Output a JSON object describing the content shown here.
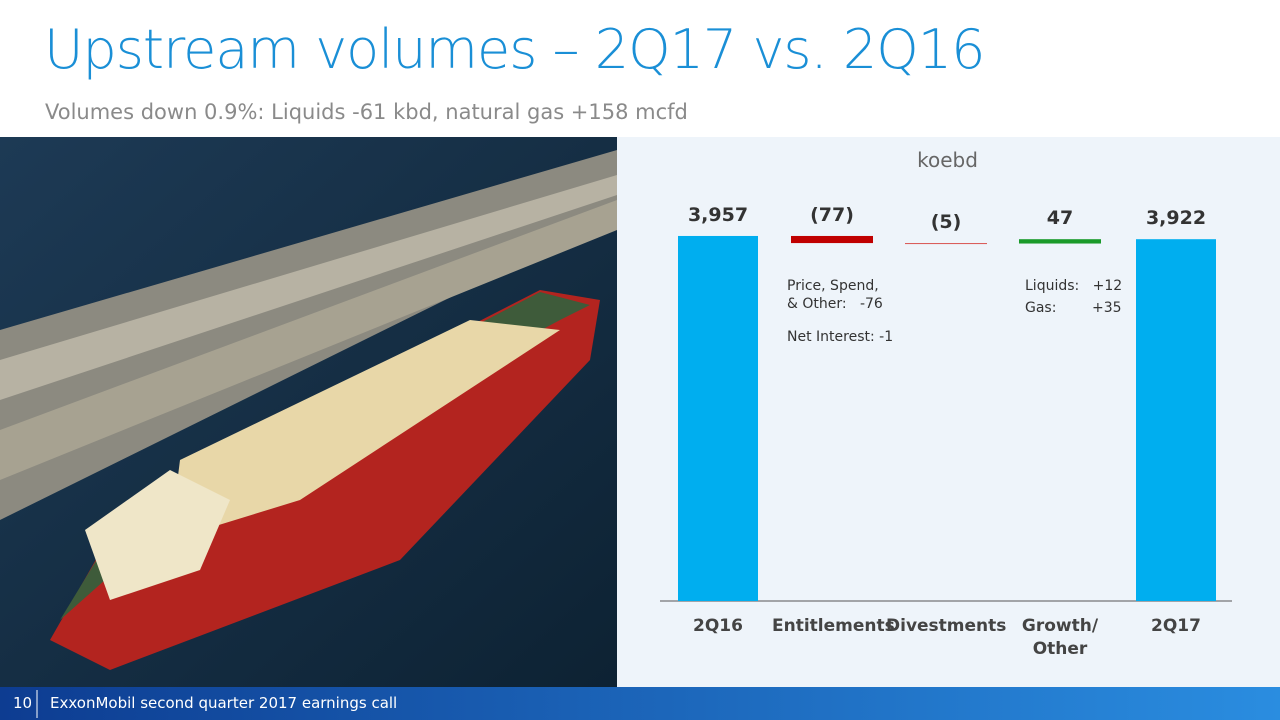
{
  "chart_data": {
    "type": "waterfall",
    "title": "Upstream volumes – 2Q17 vs. 2Q16",
    "subtitle": "Volumes down 0.9%:  Liquids -61 kbd, natural gas +158 mcfd",
    "unit_label": "koebd",
    "categories": [
      "2Q16",
      "Entitlements",
      "Divestments",
      "Growth/\nOther",
      "2Q17"
    ],
    "values": [
      3957,
      -77,
      -5,
      47,
      3922
    ],
    "value_labels": [
      "3,957",
      "(77)",
      "(5)",
      "47",
      "3,922"
    ],
    "measure": [
      "total",
      "relative",
      "relative",
      "relative",
      "total"
    ],
    "colors": [
      "#00aeef",
      "#c00000",
      "#d9534f",
      "#1a9a2a",
      "#00aeef"
    ],
    "ylim": [
      0,
      4000
    ],
    "annotations": [
      "Price, Spend,",
      "& Other:   -76",
      "Net Interest: -1",
      "Liquids:   +12",
      "Gas:        +35"
    ]
  },
  "footer": {
    "page": "10",
    "text": "ExxonMobil second quarter 2017 earnings call"
  }
}
